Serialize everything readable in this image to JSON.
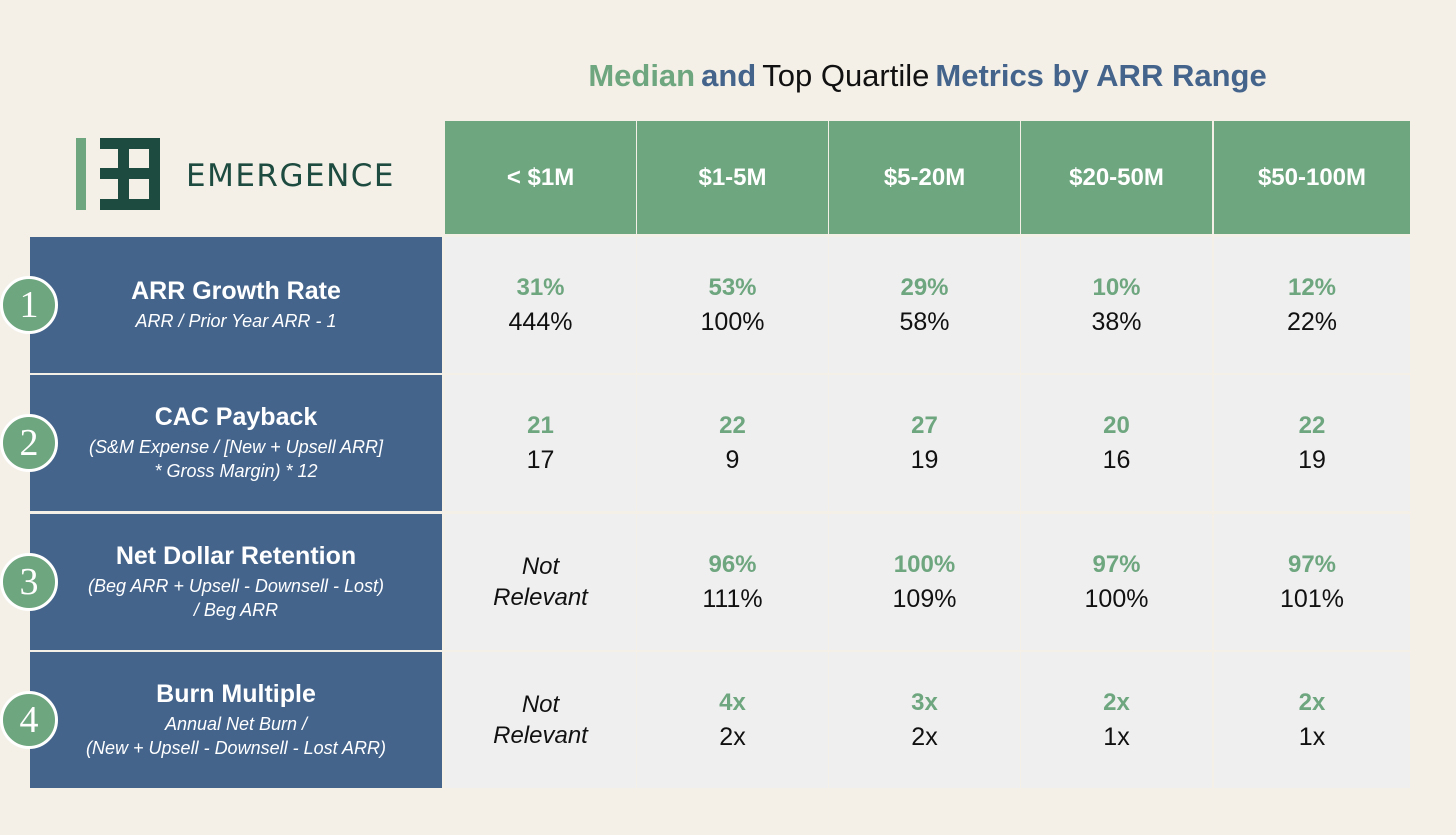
{
  "title": {
    "part1": "Median",
    "part2": "and",
    "part3": "Top Quartile",
    "part4": "Metrics by ARR Range"
  },
  "logo": {
    "text": "EMERGENCE"
  },
  "columns": [
    "< $1M",
    "$1-5M",
    "$5-20M",
    "$20-50M",
    "$50-100M"
  ],
  "rows": [
    {
      "number": "1",
      "name": "ARR Growth Rate",
      "formula_lines": [
        "ARR / Prior Year ARR - 1"
      ],
      "cells": [
        {
          "median": "31%",
          "top": "444%"
        },
        {
          "median": "53%",
          "top": "100%"
        },
        {
          "median": "29%",
          "top": "58%"
        },
        {
          "median": "10%",
          "top": "38%"
        },
        {
          "median": "12%",
          "top": "22%"
        }
      ]
    },
    {
      "number": "2",
      "name": "CAC Payback",
      "formula_lines": [
        "(S&M Expense / [New + Upsell ARR]",
        "* Gross Margin) * 12"
      ],
      "cells": [
        {
          "median": "21",
          "top": "17"
        },
        {
          "median": "22",
          "top": "9"
        },
        {
          "median": "27",
          "top": "19"
        },
        {
          "median": "20",
          "top": "16"
        },
        {
          "median": "22",
          "top": "19"
        }
      ]
    },
    {
      "number": "3",
      "name": "Net Dollar Retention",
      "formula_lines": [
        "(Beg ARR + Upsell - Downsell - Lost)",
        "/ Beg ARR"
      ],
      "cells": [
        {
          "not_relevant": [
            "Not",
            "Relevant"
          ]
        },
        {
          "median": "96%",
          "top": "111%"
        },
        {
          "median": "100%",
          "top": "109%"
        },
        {
          "median": "97%",
          "top": "100%"
        },
        {
          "median": "97%",
          "top": "101%"
        }
      ]
    },
    {
      "number": "4",
      "name": "Burn Multiple",
      "formula_lines": [
        "Annual Net Burn /",
        "(New + Upsell - Downsell - Lost ARR)"
      ],
      "cells": [
        {
          "not_relevant": [
            "Not",
            "Relevant"
          ]
        },
        {
          "median": "4x",
          "top": "2x"
        },
        {
          "median": "3x",
          "top": "2x"
        },
        {
          "median": "2x",
          "top": "1x"
        },
        {
          "median": "2x",
          "top": "1x"
        }
      ]
    }
  ],
  "colors": {
    "green": "#6ea67f",
    "blue": "#44648c",
    "cell_bg": "#efefef",
    "page_bg": "#f4f0e8",
    "logo_dark": "#1e4b3f"
  }
}
